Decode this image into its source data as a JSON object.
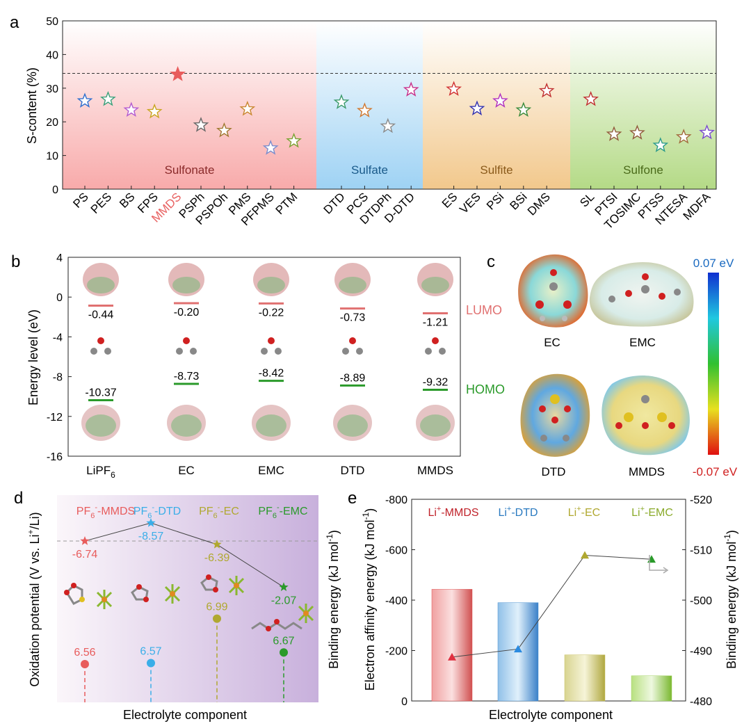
{
  "panel_labels": {
    "a": "a",
    "b": "b",
    "c": "c",
    "d": "d",
    "e": "e"
  },
  "colors": {
    "sulfonate": "#f8b0b0",
    "sulfate": "#9fd3f3",
    "sulfite": "#f3cc92",
    "sulfone": "#b8dc8c",
    "lumo": "#e07070",
    "homo": "#2a9a2a"
  },
  "chart_data": [
    {
      "panel": "a",
      "type": "scatter",
      "ylabel": "S-content (%)",
      "ylim": [
        0,
        50
      ],
      "yticks": [
        "0",
        "10",
        "20",
        "30",
        "40",
        "50"
      ],
      "reference_line": 34.4,
      "categories": [
        "PS",
        "PES",
        "BS",
        "FPS",
        "MMDS",
        "PSPh",
        "PSPOh",
        "PMS",
        "PFPMS",
        "PTM",
        "DTD",
        "PCS",
        "DTDPh",
        "D-DTD",
        "ES",
        "VES",
        "PSi",
        "BSi",
        "DMS",
        "SL",
        "PTSI",
        "TOSIMC",
        "PTSS",
        "NTESA",
        "MDFA"
      ],
      "values": [
        26.2,
        26.7,
        23.5,
        23.0,
        34.1,
        19.0,
        17.4,
        23.8,
        12.2,
        14.3,
        25.8,
        23.3,
        18.7,
        29.5,
        29.7,
        23.9,
        26.2,
        23.5,
        29.2,
        26.7,
        16.3,
        16.7,
        13.0,
        15.5,
        16.8
      ],
      "colors": [
        "#2f6fce",
        "#3aa07a",
        "#b35ad0",
        "#c9a520",
        "#e85c5c",
        "#666666",
        "#a07830",
        "#c98630",
        "#7a8ccc",
        "#7aa030",
        "#3a9a6a",
        "#d07830",
        "#8a8a8a",
        "#c8308a",
        "#d03030",
        "#3030b0",
        "#b030c0",
        "#3a8a3a",
        "#c03030",
        "#c03030",
        "#905a3a",
        "#905a3a",
        "#2a9a8a",
        "#a06a3a",
        "#7a4ad0"
      ],
      "groups": [
        {
          "name": "Sulfonate",
          "from": 0,
          "to": 9
        },
        {
          "name": "Sulfate",
          "from": 10,
          "to": 13
        },
        {
          "name": "Sulfite",
          "from": 14,
          "to": 18
        },
        {
          "name": "Sulfone",
          "from": 19,
          "to": 24
        }
      ]
    },
    {
      "panel": "b",
      "type": "scatter",
      "ylabel": "Energy level (eV)",
      "ylim": [
        -16,
        4
      ],
      "yticks": [
        "4",
        "0",
        "-4",
        "-8",
        "-12",
        "-16"
      ],
      "categories": [
        "LiPF6",
        "EC",
        "EMC",
        "DTD",
        "MMDS"
      ],
      "category_labels": [
        {
          "main": "LiPF",
          "sub": "6"
        },
        {
          "main": "EC",
          "sub": ""
        },
        {
          "main": "EMC",
          "sub": ""
        },
        {
          "main": "DTD",
          "sub": ""
        },
        {
          "main": "MMDS",
          "sub": ""
        }
      ],
      "lumo": [
        -0.44,
        -0.2,
        -0.22,
        -0.73,
        -1.21
      ],
      "homo": [
        -10.37,
        -8.73,
        -8.42,
        -8.89,
        -9.32
      ],
      "lumo_text": [
        "-0.44",
        "-0.20",
        "-0.22",
        "-0.73",
        "-1.21"
      ],
      "homo_text": [
        "-10.37",
        "-8.73",
        "-8.42",
        "-8.89",
        "-9.32"
      ],
      "lumo_label": "LUMO",
      "homo_label": "HOMO"
    },
    {
      "panel": "c",
      "type": "heatmap",
      "molecules": [
        "EC",
        "EMC",
        "DTD",
        "MMDS"
      ],
      "colorbar_max": "0.07 eV",
      "colorbar_min": "-0.07 eV"
    },
    {
      "panel": "d",
      "type": "line",
      "xlabel": "Electrolyte component",
      "ylabel": "Oxidation potential (V vs. Li",
      "ylabel_sup": "+",
      "ylabel_end": "/Li)",
      "ylabel2": "Binding energy (kJ mol",
      "ylabel2_sup": "-1",
      "ylabel2_end": ")",
      "series": [
        {
          "name": "oxidation potential",
          "values": [
            6.56,
            6.57,
            6.99,
            6.67
          ],
          "labels": [
            "6.56",
            "6.57",
            "6.99",
            "6.67"
          ]
        },
        {
          "name": "binding energy",
          "values": [
            -6.74,
            -8.57,
            -6.39,
            -2.07
          ],
          "labels": [
            "-6.74",
            "-8.57",
            "-6.39",
            "-2.07"
          ]
        }
      ],
      "legend": [
        {
          "base": "PF",
          "sub": "6",
          "sup": "-",
          "rest": "-MMDS",
          "color": "#e85c5c"
        },
        {
          "base": "PF",
          "sub": "6",
          "sup": "-",
          "rest": "-DTD",
          "color": "#3aaee8"
        },
        {
          "base": "PF",
          "sub": "6",
          "sup": "-",
          "rest": "-EC",
          "color": "#b0a830"
        },
        {
          "base": "PF",
          "sub": "6",
          "sup": "-",
          "rest": "-EMC",
          "color": "#2a9a2a"
        }
      ]
    },
    {
      "panel": "e",
      "type": "bar",
      "xlabel": "Electrolyte component",
      "ylabel": "Electron affinity energy (kJ mol",
      "ylabel_sup": "-1",
      "ylabel_end": ")",
      "ylabel2": "Binding energy (kJ mol",
      "ylabel2_sup": "-1",
      "ylabel2_end": ")",
      "ylim": [
        0,
        -800
      ],
      "yticks": [
        "0",
        "-200",
        "-400",
        "-600",
        "-800"
      ],
      "y2lim": [
        -480,
        -520
      ],
      "y2ticks": [
        "-480",
        "-490",
        "-500",
        "-510",
        "-520"
      ],
      "categories": [
        "Li+-MMDS",
        "Li+-DTD",
        "Li+-EC",
        "Li+-EMC"
      ],
      "legend": [
        {
          "base": "Li",
          "sup": "+",
          "rest": "-MMDS",
          "color": "#c0222a"
        },
        {
          "base": "Li",
          "sup": "+",
          "rest": "-DTD",
          "color": "#2a7ac0"
        },
        {
          "base": "Li",
          "sup": "+",
          "rest": "-EC",
          "color": "#b0a830"
        },
        {
          "base": "Li",
          "sup": "+",
          "rest": "-EMC",
          "color": "#8aaa2a"
        }
      ],
      "bar_values": [
        -443,
        -390,
        -183,
        -100
      ],
      "line_values": [
        -488.7,
        -490.3,
        -508.9,
        -508.1
      ],
      "bar_colors": [
        "#e05050",
        "#4a90d0",
        "#c8c060",
        "#a0d060"
      ]
    }
  ]
}
